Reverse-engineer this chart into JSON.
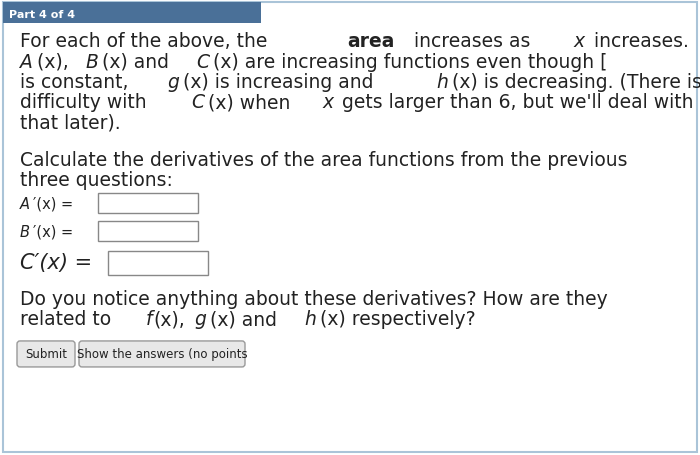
{
  "header_text": "Part 4 of 4",
  "header_bg": "#4a7098",
  "header_text_color": "#ffffff",
  "border_color": "#aac4d8",
  "bg_color": "#ffffff",
  "outer_bg": "#ffffff",
  "body_text_color": "#222222",
  "button1": "Submit",
  "button2": "Show the answers (no points",
  "button_bg": "#e8e8e8",
  "button_border": "#999999",
  "input_box_color": "#ffffff",
  "input_border_color": "#888888"
}
